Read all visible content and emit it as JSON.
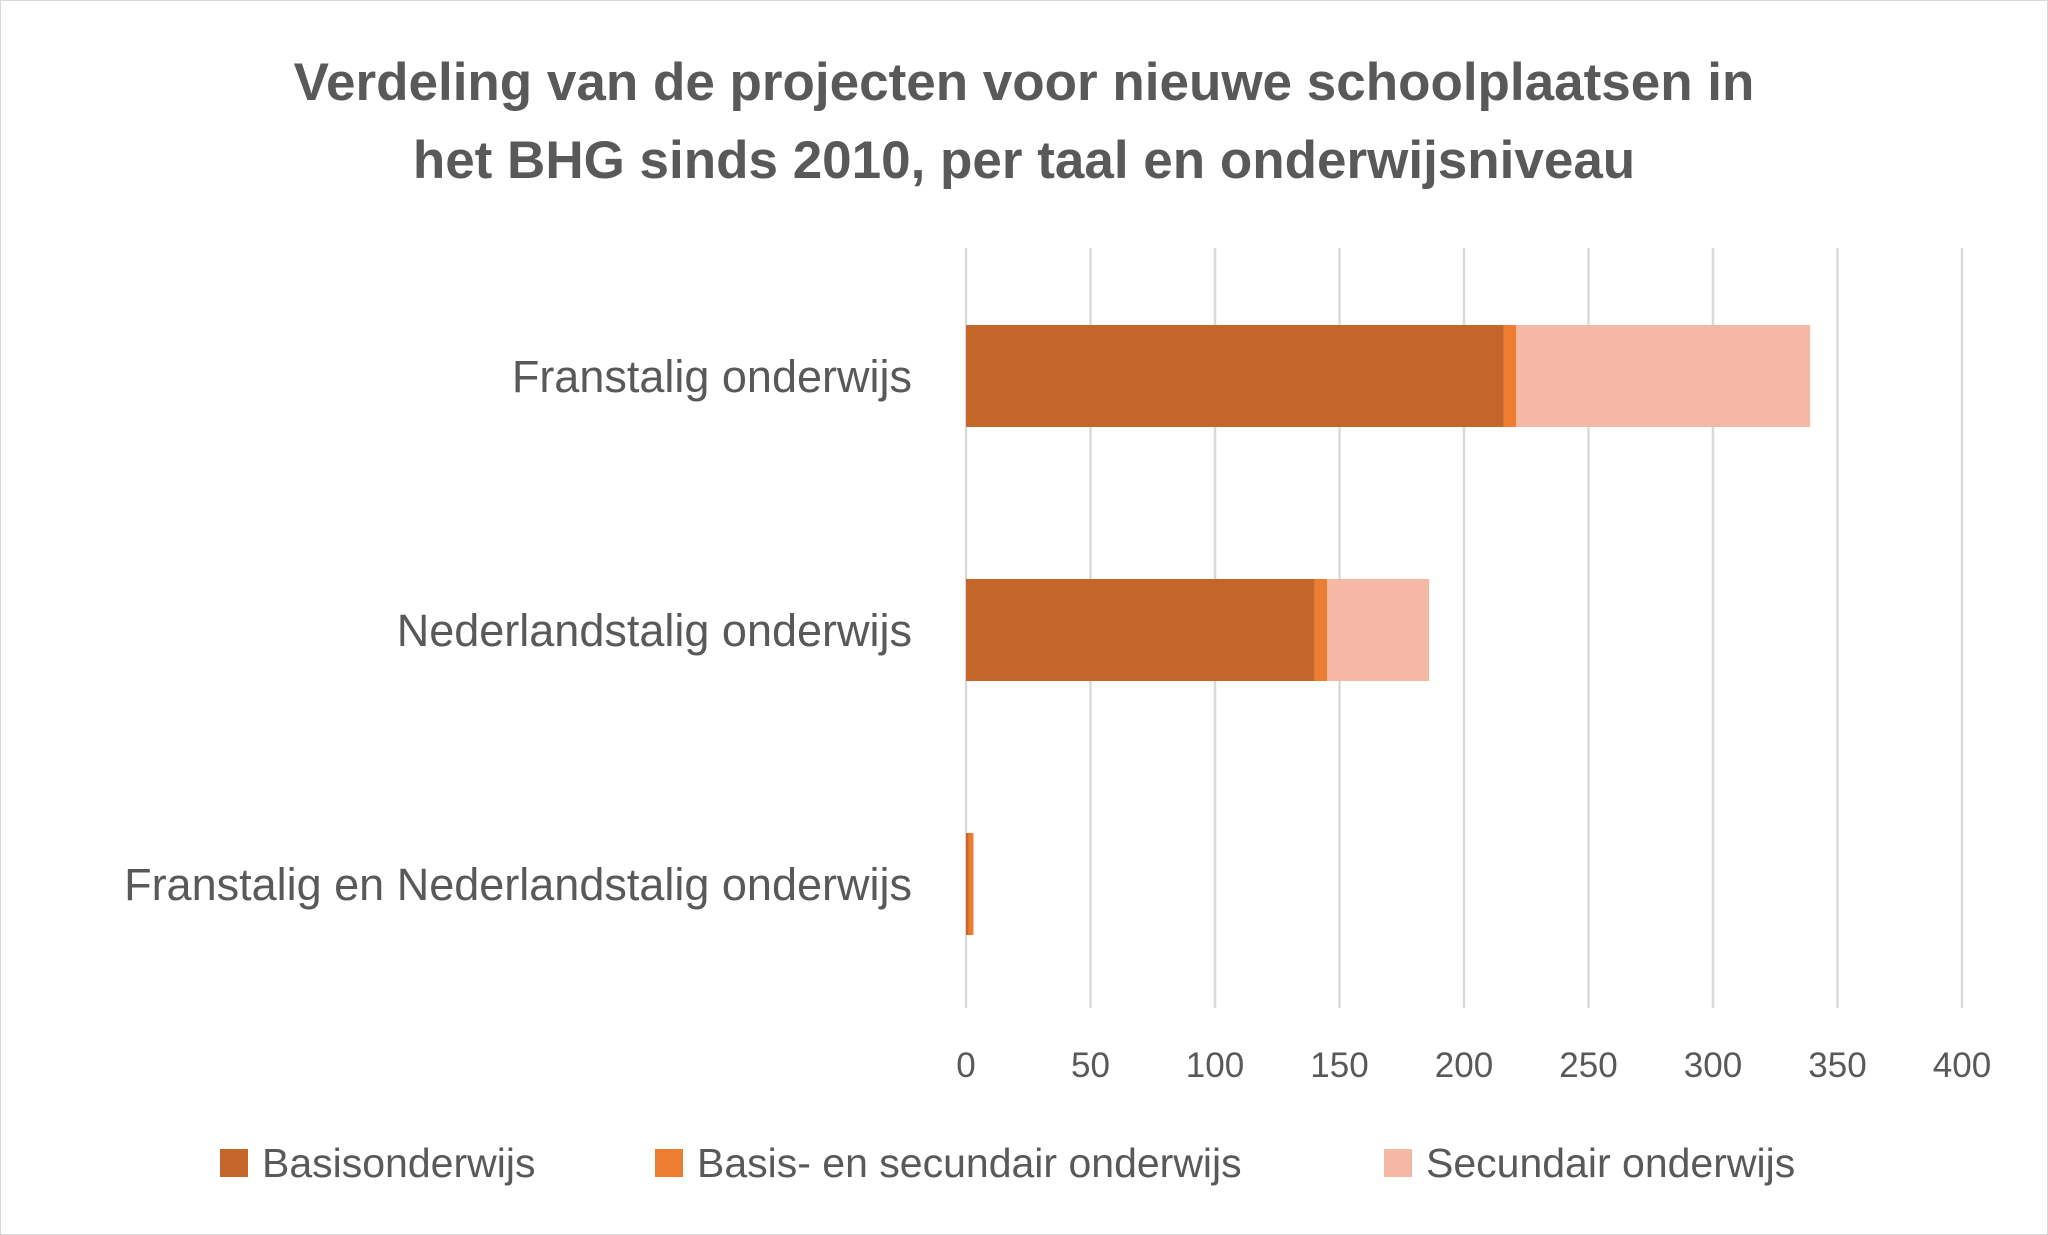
{
  "chart_data": {
    "type": "bar",
    "orientation": "horizontal",
    "stacked": true,
    "title_lines": [
      "Verdeling van de projecten voor nieuwe schoolplaatsen in",
      "het BHG sinds 2010, per taal en onderwijsniveau"
    ],
    "categories": [
      "Franstalig onderwijs",
      "Nederlandstalig onderwijs",
      "Franstalig en Nederlandstalig onderwijs"
    ],
    "series": [
      {
        "name": "Basisonderwijs",
        "color": "#c4652a",
        "values": [
          216,
          140,
          1
        ]
      },
      {
        "name": "Basis- en secundair onderwijs",
        "color": "#ed7d31",
        "values": [
          5,
          5,
          2
        ]
      },
      {
        "name": "Secundair onderwijs",
        "color": "#f4b8a5",
        "values": [
          118,
          41,
          0
        ]
      }
    ],
    "xlim": [
      0,
      400
    ],
    "x_ticks": [
      "0",
      "50",
      "100",
      "150",
      "200",
      "250",
      "300",
      "350",
      "400"
    ],
    "tick_values": [
      0,
      50,
      100,
      150,
      200,
      250,
      300,
      350,
      400
    ],
    "grid": true,
    "legend_position": "bottom"
  }
}
